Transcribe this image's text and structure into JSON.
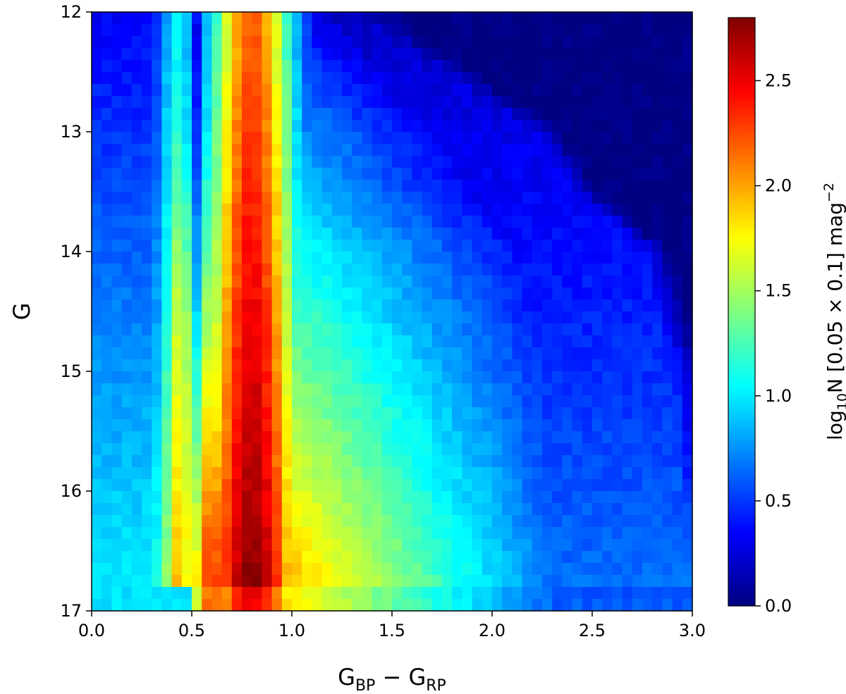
{
  "chart_data": {
    "type": "heatmap",
    "title": "",
    "xlabel": "G",
    "xlabel_sub1": "BP",
    "xlabel_minus": " − ",
    "xlabel_g2": "G",
    "xlabel_sub2": "RP",
    "ylabel": "G",
    "x_ticks": [
      "0.0",
      "0.5",
      "1.0",
      "1.5",
      "2.0",
      "2.5",
      "3.0"
    ],
    "x_tick_values": [
      0.0,
      0.5,
      1.0,
      1.5,
      2.0,
      2.5,
      3.0
    ],
    "y_ticks": [
      "12",
      "13",
      "14",
      "15",
      "16",
      "17"
    ],
    "y_tick_values": [
      12,
      13,
      14,
      15,
      16,
      17
    ],
    "xlim": [
      0.0,
      3.0
    ],
    "ylim": [
      17,
      12
    ],
    "y_inverted": true,
    "bin_width_x": 0.05,
    "bin_width_y": 0.1,
    "colormap": "jet",
    "colorbar": {
      "label_prefix": "log",
      "label_sub": "10",
      "label_body": "N [0.05 × 0.1] mag",
      "label_sup": "−2",
      "range": [
        0.0,
        2.8
      ],
      "ticks": [
        "0.0",
        "0.5",
        "1.0",
        "1.5",
        "2.0",
        "2.5"
      ],
      "tick_values": [
        0.0,
        0.5,
        1.0,
        1.5,
        2.0,
        2.5
      ]
    },
    "structure": {
      "peak_ridge_color": 0.8,
      "peak_value": 2.8,
      "faint_blue_band_color": 0.52,
      "upper_envelope_color_at_G": [
        [
          12.0,
          1.35
        ],
        [
          12.5,
          1.75
        ],
        [
          13.0,
          2.2
        ],
        [
          13.5,
          2.4
        ],
        [
          14.0,
          2.75
        ],
        [
          15.0,
          2.9
        ],
        [
          16.0,
          2.95
        ],
        [
          17.0,
          3.0
        ]
      ],
      "bright_limit_rows_G": [
        16.8,
        17.0
      ]
    }
  }
}
